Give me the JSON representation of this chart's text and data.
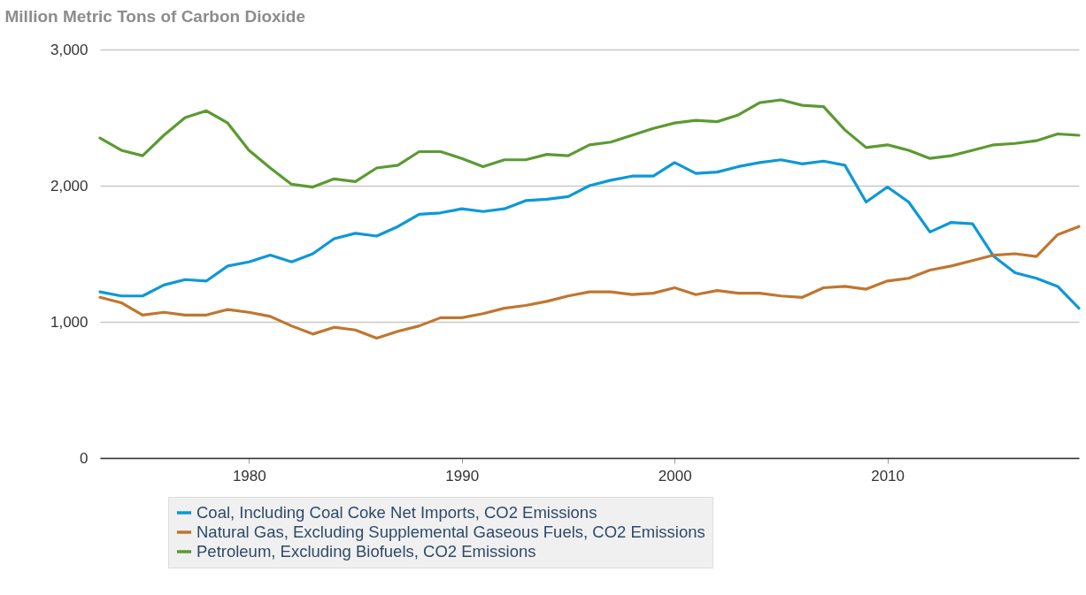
{
  "chart_data": {
    "type": "line",
    "ylabel": "Million Metric Tons of Carbon Dioxide",
    "x": [
      1973,
      1974,
      1975,
      1976,
      1977,
      1978,
      1979,
      1980,
      1981,
      1982,
      1983,
      1984,
      1985,
      1986,
      1987,
      1988,
      1989,
      1990,
      1991,
      1992,
      1993,
      1994,
      1995,
      1996,
      1997,
      1998,
      1999,
      2000,
      2001,
      2002,
      2003,
      2004,
      2005,
      2006,
      2007,
      2008,
      2009,
      2010,
      2011,
      2012,
      2013,
      2014,
      2015,
      2016,
      2017,
      2018,
      2019
    ],
    "series": [
      {
        "name": "Coal, Including Coal Coke Net Imports, CO2 Emissions",
        "color": "#0d98d8",
        "values": [
          1220,
          1190,
          1190,
          1270,
          1310,
          1300,
          1410,
          1440,
          1490,
          1440,
          1500,
          1610,
          1650,
          1630,
          1700,
          1790,
          1800,
          1830,
          1810,
          1830,
          1890,
          1900,
          1920,
          2000,
          2040,
          2070,
          2070,
          2170,
          2090,
          2100,
          2140,
          2170,
          2190,
          2160,
          2180,
          2150,
          1880,
          1990,
          1880,
          1660,
          1730,
          1720,
          1480,
          1360,
          1320,
          1260,
          1100
        ]
      },
      {
        "name": "Natural Gas, Excluding Supplemental Gaseous Fuels, CO2 Emissions",
        "color": "#c0762f",
        "values": [
          1180,
          1140,
          1050,
          1070,
          1050,
          1050,
          1090,
          1070,
          1040,
          970,
          910,
          960,
          940,
          880,
          930,
          970,
          1030,
          1030,
          1060,
          1100,
          1120,
          1150,
          1190,
          1220,
          1220,
          1200,
          1210,
          1250,
          1200,
          1230,
          1210,
          1210,
          1190,
          1180,
          1250,
          1260,
          1240,
          1300,
          1320,
          1380,
          1410,
          1450,
          1490,
          1500,
          1480,
          1640,
          1700
        ]
      },
      {
        "name": "Petroleum, Excluding Biofuels, CO2 Emissions",
        "color": "#5b9a32",
        "values": [
          2350,
          2260,
          2220,
          2370,
          2500,
          2550,
          2460,
          2260,
          2130,
          2010,
          1990,
          2050,
          2030,
          2130,
          2150,
          2250,
          2250,
          2200,
          2140,
          2190,
          2190,
          2230,
          2220,
          2300,
          2320,
          2370,
          2420,
          2460,
          2480,
          2470,
          2520,
          2610,
          2630,
          2590,
          2580,
          2410,
          2280,
          2300,
          2260,
          2200,
          2220,
          2260,
          2300,
          2310,
          2330,
          2380,
          2370
        ]
      }
    ],
    "xlim": [
      1973,
      2019
    ],
    "xticks": [
      1980,
      1990,
      2000,
      2010
    ],
    "ylim": [
      0,
      3000
    ],
    "yticks": [
      {
        "value": 0,
        "label": "0"
      },
      {
        "value": 1000,
        "label": "1,000"
      },
      {
        "value": 2000,
        "label": "2,000"
      },
      {
        "value": 3000,
        "label": "3,000"
      }
    ],
    "grid": "y",
    "legend": "bottom",
    "marker": "none",
    "line_style": "solid"
  }
}
